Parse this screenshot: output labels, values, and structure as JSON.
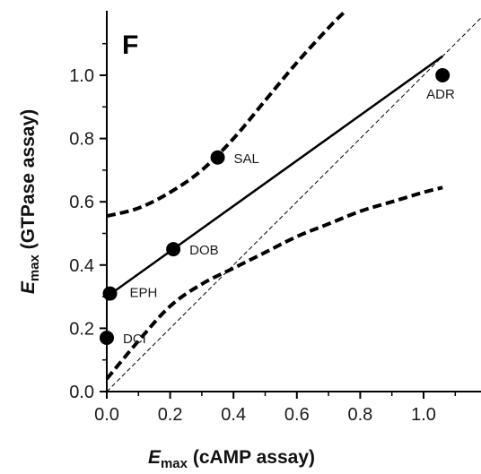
{
  "chart_data": {
    "type": "scatter",
    "panel_label": "F",
    "xlabel": {
      "main": "E",
      "sub": "max",
      "rest": " (cAMP assay)"
    },
    "ylabel": {
      "main": "E",
      "sub": "max",
      "rest": " (GTPase assay)"
    },
    "xlim": [
      0,
      1.2
    ],
    "ylim": [
      0,
      1.2
    ],
    "xticks": [
      "0.0",
      "0.2",
      "0.4",
      "0.6",
      "0.8",
      "1.0"
    ],
    "yticks": [
      "0.0",
      "0.2",
      "0.4",
      "0.6",
      "0.8",
      "1.0"
    ],
    "grid": false,
    "legend": "none",
    "points": [
      {
        "label": "ADR",
        "x": 1.06,
        "y": 1.0
      },
      {
        "label": "SAL",
        "x": 0.35,
        "y": 0.74
      },
      {
        "label": "DOB",
        "x": 0.21,
        "y": 0.45
      },
      {
        "label": "EPH",
        "x": 0.01,
        "y": 0.31
      },
      {
        "label": "DCI",
        "x": 0.0,
        "y": 0.17
      }
    ],
    "regression_line": {
      "x": [
        0.0,
        1.06
      ],
      "y": [
        0.3,
        1.06
      ]
    },
    "confidence_upper": {
      "x": [
        0.0,
        0.1,
        0.2,
        0.3,
        0.4,
        0.5,
        0.6,
        0.7,
        0.75
      ],
      "y": [
        0.555,
        0.58,
        0.63,
        0.7,
        0.8,
        0.92,
        1.04,
        1.15,
        1.2
      ]
    },
    "confidence_lower": {
      "x": [
        0.0,
        0.1,
        0.2,
        0.3,
        0.4,
        0.5,
        0.6,
        0.7,
        0.8,
        0.9,
        1.0,
        1.06
      ],
      "y": [
        0.04,
        0.16,
        0.27,
        0.34,
        0.39,
        0.44,
        0.49,
        0.53,
        0.57,
        0.6,
        0.63,
        0.645
      ]
    },
    "identity_line": {
      "x": [
        0,
        1.2
      ],
      "y": [
        0,
        1.2
      ]
    }
  }
}
